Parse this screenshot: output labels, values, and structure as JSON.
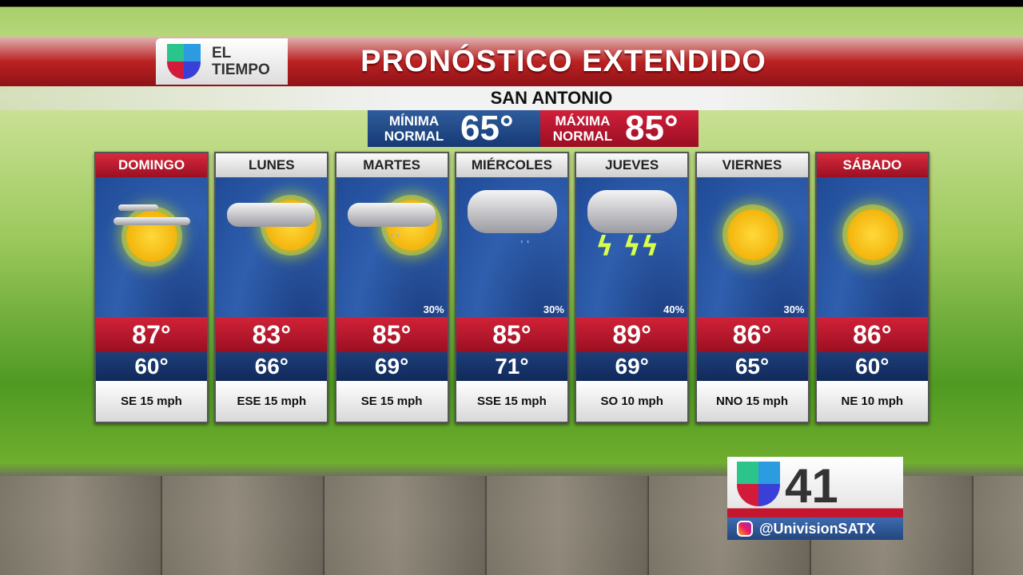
{
  "header": {
    "brand": "EL TIEMPO",
    "title": "PRONÓSTICO EXTENDIDO",
    "city": "SAN ANTONIO"
  },
  "normals": {
    "min_label": "MÍNIMA NORMAL",
    "min_value": "65°",
    "max_label": "MÁXIMA NORMAL",
    "max_value": "85°"
  },
  "days": [
    {
      "name": "DOMINGO",
      "icon": "partly-sunny-icon",
      "hi": "87°",
      "lo": "60°",
      "wind": "SE 15 mph",
      "pop": ""
    },
    {
      "name": "LUNES",
      "icon": "partly-cloudy-icon",
      "hi": "83°",
      "lo": "66°",
      "wind": "ESE 15 mph",
      "pop": ""
    },
    {
      "name": "MARTES",
      "icon": "sun-cloud-rain-icon",
      "hi": "85°",
      "lo": "69°",
      "wind": "SE 15 mph",
      "pop": "30%"
    },
    {
      "name": "MIÉRCOLES",
      "icon": "cloud-rain-icon",
      "hi": "85°",
      "lo": "71°",
      "wind": "SSE 15 mph",
      "pop": "30%"
    },
    {
      "name": "JUEVES",
      "icon": "thunderstorm-icon",
      "hi": "89°",
      "lo": "69°",
      "wind": "SO 10 mph",
      "pop": "40%"
    },
    {
      "name": "VIERNES",
      "icon": "sunny-icon",
      "hi": "86°",
      "lo": "65°",
      "wind": "NNO 15 mph",
      "pop": "30%"
    },
    {
      "name": "SÁBADO",
      "icon": "sunny-icon",
      "hi": "86°",
      "lo": "60°",
      "wind": "NE 10 mph",
      "pop": ""
    }
  ],
  "station": {
    "channel": "41",
    "social": "@UnivisionSATX"
  },
  "colors": {
    "red": "#c41a30",
    "blue": "#1d3f78"
  }
}
